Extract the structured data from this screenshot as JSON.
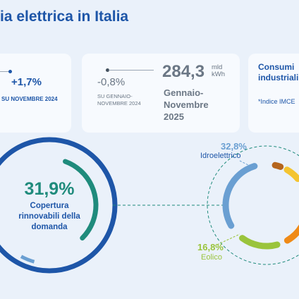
{
  "page": {
    "title": "ia elettrica in Italia"
  },
  "card_monthly": {
    "change": "+1,7%",
    "compare_label": "SU NOVEMBRE 2024"
  },
  "card_ytd": {
    "change": "-0,8%",
    "compare_label": "SU GENNAIO-NOVEMBRE 2024",
    "total_value": "284,3",
    "total_unit": "mld kWh",
    "period": "Gennaio-Novembre 2025"
  },
  "card_industrial": {
    "title": "Consumi industriali",
    "note": "*Indice IMCE"
  },
  "renewables_coverage": {
    "value_pct": 31.9,
    "value_label": "31,9%",
    "label": "Copertura rinnovabili della domanda"
  },
  "sources": {
    "idro": {
      "pct": "32,8%",
      "label": "Idroelettrico"
    },
    "eolico": {
      "pct": "16,8%",
      "label": "Eolico"
    }
  },
  "colors": {
    "primary_blue": "#1e56a8",
    "teal": "#1f8b7c",
    "light_blue_segment": "#6a9fd2",
    "orange": "#ef8a17",
    "lime": "#9ac43c",
    "yellow": "#f4c430",
    "brown": "#b5651d"
  },
  "icons": [
    "trend-arrow-icon"
  ]
}
